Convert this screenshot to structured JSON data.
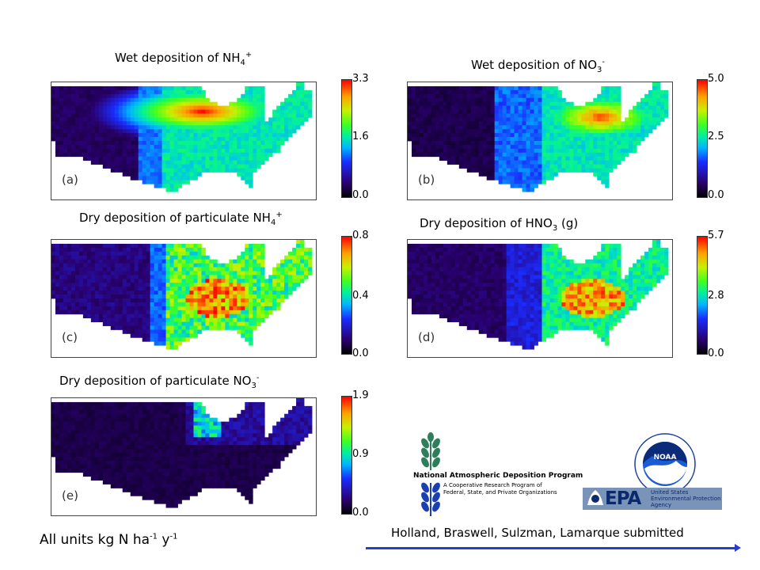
{
  "chart_data": [
    {
      "type": "heatmap",
      "panel": "(a)",
      "title_pre": "Wet deposition of NH",
      "title_sub": "4",
      "title_sup": "+",
      "colorbar": {
        "min": 0.0,
        "mid": 1.6,
        "max": 3.3,
        "ticks": [
          "3.3",
          "1.6",
          "0.0"
        ]
      },
      "pattern": "wet-nh4"
    },
    {
      "type": "heatmap",
      "panel": "(b)",
      "title_pre": "Wet deposition of NO",
      "title_sub": "3",
      "title_sup": "-",
      "colorbar": {
        "min": 0.0,
        "mid": 2.5,
        "max": 5.0,
        "ticks": [
          "5.0",
          "2.5",
          "0.0"
        ]
      },
      "pattern": "wet-no3"
    },
    {
      "type": "heatmap",
      "panel": "(c)",
      "title_pre": "Dry deposition of particulate NH",
      "title_sub": "4",
      "title_sup": "+",
      "colorbar": {
        "min": 0.0,
        "mid": 0.4,
        "max": 0.8,
        "ticks": [
          "0.8",
          "0.4",
          "0.0"
        ]
      },
      "pattern": "dry-nh4"
    },
    {
      "type": "heatmap",
      "panel": "(d)",
      "title_pre": "Dry deposition of HNO",
      "title_sub": "3",
      "title_sup": "",
      "title_post": " (g)",
      "colorbar": {
        "min": 0.0,
        "mid": 2.8,
        "max": 5.7,
        "ticks": [
          "5.7",
          "2.8",
          "0.0"
        ]
      },
      "pattern": "dry-hno3"
    },
    {
      "type": "heatmap",
      "panel": "(e)",
      "title_pre": "Dry deposition of particulate NO",
      "title_sub": "3",
      "title_sup": "-",
      "colorbar": {
        "min": 0.0,
        "mid": 0.9,
        "max": 1.9,
        "ticks": [
          "1.9",
          "0.9",
          "0.0"
        ]
      },
      "pattern": "dry-no3"
    }
  ],
  "units": {
    "pre": "All units kg N ha",
    "sup1": "-1",
    "mid": " y",
    "sup2": "-1"
  },
  "citation": "Holland, Braswell, Sulzman, Lamarque submitted",
  "logos": {
    "nadp": {
      "name": "National Atmospheric Deposition Program",
      "line1": "A Cooperative Research Program of",
      "line2": "Federal, State, and Private Organizations"
    },
    "noaa": {
      "name": "NOAA"
    },
    "epa": {
      "name": "EPA",
      "line1": "United States",
      "line2": "Environmental Protection",
      "line3": "Agency"
    }
  }
}
